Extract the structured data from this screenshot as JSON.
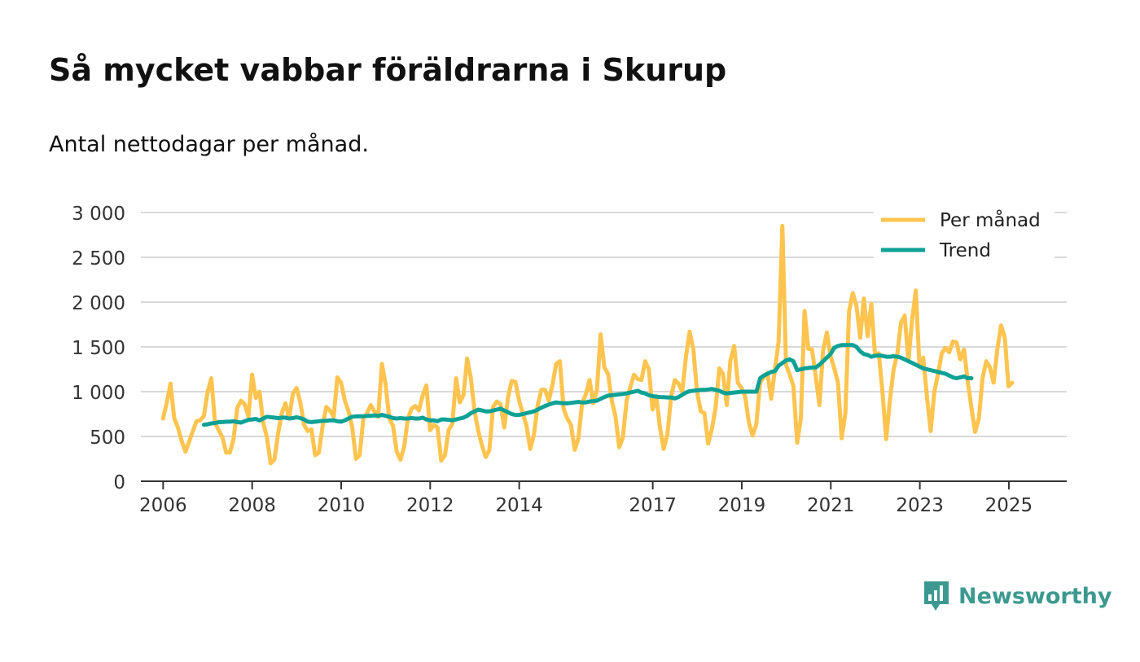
{
  "title": "Så mycket vabbar föräldrarna i Skurup",
  "subtitle": "Antal nettodagar per månad.",
  "brand": {
    "name": "Newsworthy",
    "color": "#3d9990",
    "icon": "newsworthy-logo-icon"
  },
  "chart_data": {
    "type": "line",
    "title": "Så mycket vabbar föräldrarna i Skurup",
    "subtitle": "Antal nettodagar per månad.",
    "xlabel": "",
    "ylabel": "",
    "ylim": [
      0,
      3000
    ],
    "xlim": [
      2005.5,
      2026.3
    ],
    "yticks": [
      0,
      500,
      1000,
      1500,
      2000,
      2500,
      3000
    ],
    "ytick_labels": [
      "0",
      "500",
      "1 000",
      "1 500",
      "2 000",
      "2 500",
      "3 000"
    ],
    "xticks": [
      2006,
      2008,
      2010,
      2012,
      2014,
      2017,
      2019,
      2021,
      2023,
      2025
    ],
    "xtick_labels": [
      "2006",
      "2008",
      "2010",
      "2012",
      "2014",
      "2017",
      "2019",
      "2021",
      "2023",
      "2025"
    ],
    "grid": true,
    "legend_position": "top-right",
    "series": [
      {
        "name": "Per månad",
        "color": "#fec44f",
        "x_start": 2006.0,
        "x_step": 0.0833,
        "values": [
          700,
          880,
          1090,
          700,
          600,
          450,
          330,
          440,
          560,
          670,
          680,
          730,
          1000,
          1150,
          650,
          570,
          490,
          320,
          320,
          470,
          820,
          900,
          860,
          720,
          1190,
          930,
          1000,
          650,
          490,
          200,
          240,
          530,
          760,
          870,
          700,
          980,
          1040,
          880,
          630,
          560,
          580,
          290,
          320,
          610,
          830,
          790,
          720,
          1160,
          1100,
          900,
          780,
          600,
          250,
          290,
          700,
          760,
          850,
          780,
          720,
          1310,
          1080,
          700,
          620,
          330,
          240,
          380,
          700,
          810,
          840,
          790,
          960,
          1070,
          570,
          630,
          600,
          230,
          290,
          570,
          640,
          1150,
          880,
          960,
          1370,
          1150,
          780,
          560,
          400,
          270,
          350,
          830,
          890,
          860,
          600,
          930,
          1120,
          1110,
          900,
          760,
          620,
          360,
          520,
          840,
          1020,
          1020,
          900,
          1070,
          1310,
          1340,
          810,
          700,
          630,
          350,
          480,
          870,
          970,
          1130,
          870,
          1020,
          1640,
          1270,
          1200,
          900,
          720,
          380,
          490,
          900,
          1050,
          1190,
          1140,
          1130,
          1340,
          1250,
          800,
          950,
          600,
          360,
          520,
          950,
          1130,
          1090,
          1000,
          1390,
          1670,
          1470,
          1000,
          780,
          760,
          420,
          580,
          820,
          1260,
          1200,
          850,
          1350,
          1510,
          1100,
          1040,
          940,
          650,
          510,
          640,
          1100,
          1160,
          1210,
          920,
          1250,
          1560,
          2850,
          1300,
          1190,
          1060,
          430,
          700,
          1900,
          1480,
          1470,
          1180,
          850,
          1460,
          1660,
          1400,
          1260,
          1100,
          480,
          760,
          1900,
          2100,
          1960,
          1600,
          2040,
          1620,
          1980,
          1410,
          1430,
          1000,
          470,
          900,
          1250,
          1420,
          1770,
          1850,
          1340,
          1800,
          2130,
          1280,
          1380,
          950,
          560,
          1000,
          1200,
          1430,
          1490,
          1440,
          1560,
          1550,
          1360,
          1470,
          1120,
          820,
          550,
          700,
          1150,
          1340,
          1270,
          1100,
          1480,
          1740,
          1600,
          1060,
          1100
        ]
      },
      {
        "name": "Trend",
        "color": "#0fa195",
        "x_start": 2006.9167,
        "x_step": 0.0833,
        "values": [
          630,
          635,
          645,
          650,
          660,
          660,
          665,
          665,
          670,
          660,
          655,
          670,
          685,
          690,
          695,
          680,
          700,
          720,
          715,
          710,
          705,
          710,
          710,
          700,
          705,
          715,
          705,
          690,
          665,
          660,
          665,
          670,
          675,
          675,
          680,
          680,
          670,
          665,
          680,
          700,
          720,
          725,
          725,
          725,
          730,
          730,
          735,
          730,
          740,
          730,
          720,
          705,
          700,
          705,
          700,
          700,
          705,
          700,
          700,
          710,
          690,
          680,
          680,
          670,
          690,
          690,
          685,
          680,
          690,
          700,
          710,
          730,
          760,
          780,
          800,
          790,
          780,
          780,
          790,
          800,
          810,
          790,
          770,
          750,
          740,
          740,
          750,
          760,
          770,
          780,
          800,
          820,
          840,
          855,
          870,
          880,
          875,
          870,
          870,
          875,
          880,
          885,
          880,
          880,
          890,
          895,
          900,
          920,
          940,
          955,
          960,
          965,
          970,
          975,
          980,
          990,
          1000,
          1010,
          990,
          980,
          960,
          950,
          945,
          940,
          938,
          935,
          935,
          925,
          940,
          965,
          990,
          1005,
          1010,
          1015,
          1020,
          1020,
          1025,
          1030,
          1020,
          1010,
          990,
          980,
          985,
          990,
          995,
          1000,
          1000,
          1000,
          1000,
          1000,
          1150,
          1180,
          1200,
          1220,
          1230,
          1290,
          1320,
          1350,
          1360,
          1340,
          1240,
          1250,
          1260,
          1265,
          1270,
          1270,
          1300,
          1340,
          1380,
          1420,
          1490,
          1510,
          1520,
          1520,
          1520,
          1520,
          1500,
          1450,
          1420,
          1410,
          1390,
          1400,
          1405,
          1400,
          1390,
          1390,
          1395,
          1390,
          1380,
          1360,
          1340,
          1320,
          1300,
          1280,
          1260,
          1250,
          1240,
          1230,
          1220,
          1210,
          1200,
          1180,
          1160,
          1150,
          1160,
          1170,
          1150,
          1150
        ]
      }
    ]
  }
}
